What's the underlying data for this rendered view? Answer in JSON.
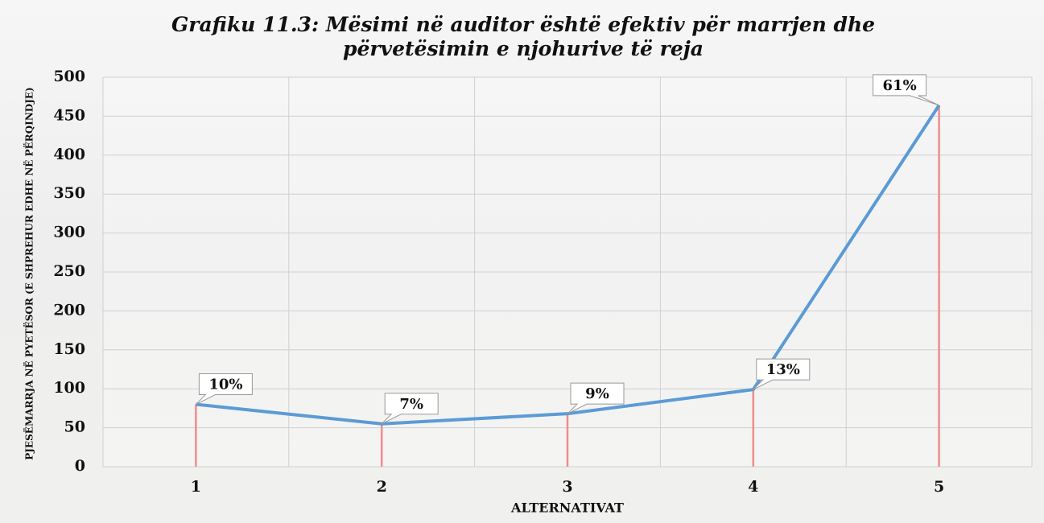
{
  "chart_data": {
    "type": "line",
    "title": "Grafiku 11.3: Mësimi në auditor është efektiv për marrjen dhe përvetësimin e njohurive të reja",
    "x_label": "ALTERNATIVAT",
    "y_label": "PJESËMARRJA NË PYETËSOR (E SHPREHUR EDHE NË PËRQINDJE)",
    "categories": [
      "1",
      "2",
      "3",
      "4",
      "5"
    ],
    "values": [
      80,
      55,
      68,
      99,
      464
    ],
    "point_labels": [
      "10%",
      "7%",
      "9%",
      "13%",
      "61%"
    ],
    "color": "#5b9bd5",
    "drop_line_color": "#f08c8c",
    "ylim": [
      0,
      500
    ],
    "yticks": [
      0,
      50,
      100,
      150,
      200,
      250,
      300,
      350,
      400,
      450,
      500
    ],
    "grid": true
  }
}
